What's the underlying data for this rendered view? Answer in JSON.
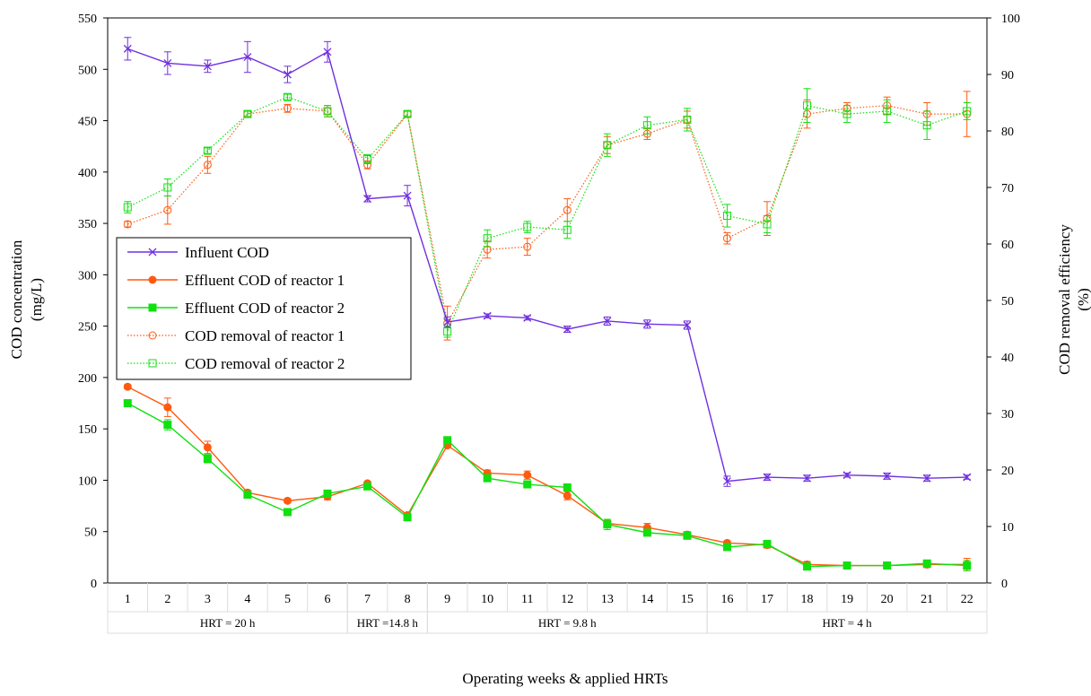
{
  "chart_data": {
    "type": "line",
    "title": "",
    "xlabel": "Operating weeks & applied HRTs",
    "ylabel_left": [
      "COD concentration",
      "(mg/L)"
    ],
    "ylabel_right": [
      "COD removal efficiency",
      "(%)"
    ],
    "x": [
      1,
      2,
      3,
      4,
      5,
      6,
      7,
      8,
      9,
      10,
      11,
      12,
      13,
      14,
      15,
      16,
      17,
      18,
      19,
      20,
      21,
      22
    ],
    "x_tick_labels": [
      "1",
      "2",
      "3",
      "4",
      "5",
      "6",
      "7",
      "8",
      "9",
      "10",
      "11",
      "12",
      "13",
      "14",
      "15",
      "16",
      "17",
      "18",
      "19",
      "20",
      "21",
      "22"
    ],
    "y_left_ticks": [
      "0",
      "50",
      "100",
      "150",
      "200",
      "250",
      "300",
      "350",
      "400",
      "450",
      "500",
      "550"
    ],
    "y_right_ticks": [
      "0",
      "10",
      "20",
      "30",
      "40",
      "50",
      "60",
      "70",
      "80",
      "90",
      "100"
    ],
    "ylim_left": [
      0,
      550
    ],
    "ylim_right": [
      0,
      100
    ],
    "grid": false,
    "legend_position": "left-middle",
    "hrt_groups": [
      {
        "label": "HRT = 20 h",
        "from_week": 1,
        "to_week": 6
      },
      {
        "label": "HRT =14.8 h",
        "from_week": 7,
        "to_week": 8
      },
      {
        "label": "HRT = 9.8 h",
        "from_week": 9,
        "to_week": 15
      },
      {
        "label": "HRT = 4 h",
        "from_week": 16,
        "to_week": 22
      }
    ],
    "series": [
      {
        "name": "Influent COD",
        "axis": "left",
        "color": "#7030e0",
        "line": "solid",
        "marker": "x",
        "values": [
          520,
          506,
          503,
          512,
          495,
          517,
          374,
          377,
          254,
          260,
          258,
          247,
          255,
          252,
          251,
          99,
          103,
          102,
          105,
          104,
          102,
          103
        ],
        "errors": [
          11,
          11,
          6,
          15,
          8,
          10,
          3,
          10,
          5,
          2,
          2,
          3,
          4,
          4,
          4,
          5,
          3,
          3,
          2,
          3,
          3,
          2
        ]
      },
      {
        "name": "Effluent COD of reactor 1",
        "axis": "left",
        "color": "#ff5a10",
        "line": "solid",
        "marker": "circle",
        "values": [
          191,
          171,
          132,
          88,
          80,
          84,
          97,
          66,
          134,
          107,
          105,
          85,
          58,
          54,
          47,
          39,
          37,
          18,
          17,
          17,
          18,
          18
        ],
        "errors": [
          2,
          9,
          6,
          2,
          2,
          3,
          2,
          2,
          2,
          3,
          4,
          4,
          3,
          4,
          3,
          2,
          3,
          3,
          2,
          2,
          3,
          6
        ]
      },
      {
        "name": "Effluent COD of reactor 2",
        "axis": "left",
        "color": "#10e010",
        "line": "solid",
        "marker": "square",
        "values": [
          175,
          154,
          121,
          86,
          69,
          87,
          94,
          64,
          139,
          102,
          96,
          93,
          57,
          49,
          46,
          35,
          38,
          16,
          17,
          17,
          19,
          17
        ],
        "errors": [
          2,
          5,
          4,
          3,
          2,
          3,
          2,
          3,
          3,
          3,
          2,
          3,
          5,
          3,
          3,
          3,
          2,
          2,
          2,
          2,
          2,
          5
        ]
      },
      {
        "name": "COD removal of reactor 1",
        "axis": "right",
        "color": "#ff5a10",
        "line": "dotted",
        "marker": "open-circle",
        "values": [
          63.5,
          66,
          74,
          83,
          84,
          83.5,
          74,
          83,
          46,
          59,
          59.5,
          66,
          77.5,
          79.5,
          82,
          61,
          64.5,
          83,
          84,
          84.5,
          83,
          83
        ],
        "errors": [
          0.5,
          2.5,
          1.5,
          0.5,
          0.7,
          1,
          0.7,
          0.5,
          3,
          1.5,
          1.5,
          2,
          1.5,
          1,
          1.5,
          1,
          3,
          2.5,
          1,
          1.5,
          2,
          4
        ]
      },
      {
        "name": "COD removal of reactor 2",
        "axis": "right",
        "color": "#10e010",
        "line": "dotted",
        "marker": "open-square",
        "values": [
          66.5,
          70,
          76.5,
          83,
          86,
          83.5,
          75,
          83,
          44.5,
          61,
          63,
          62.5,
          77.5,
          81,
          82,
          65,
          63.5,
          84.5,
          83,
          83.5,
          81,
          83.5
        ],
        "errors": [
          1,
          1.5,
          0.5,
          0.5,
          0.5,
          1,
          0.8,
          0.5,
          1,
          1.5,
          1,
          1.5,
          2,
          1.5,
          2,
          2,
          1.5,
          3,
          1.5,
          2,
          2.5,
          1.5
        ]
      }
    ]
  }
}
